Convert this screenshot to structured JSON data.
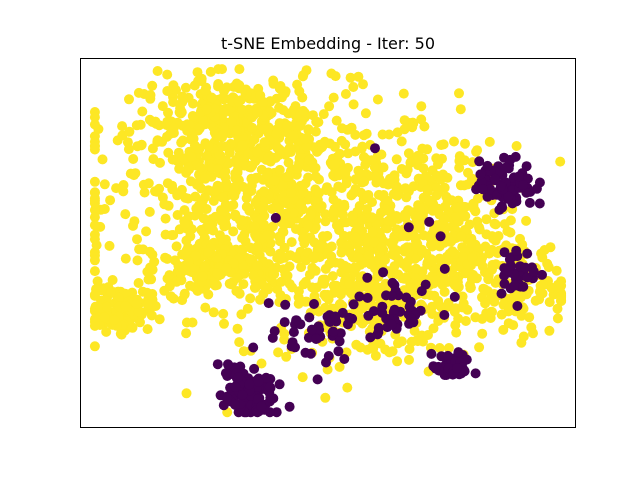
{
  "chart_data": {
    "type": "scatter",
    "title": "t-SNE Embedding -  Iter: 50",
    "xlabel": "",
    "ylabel": "",
    "xlim": [
      0,
      100
    ],
    "ylim": [
      0,
      100
    ],
    "grid": false,
    "ticks": "none",
    "colors": {
      "yellow": "#fde725",
      "purple": "#440154"
    },
    "clusters": [
      {
        "color": "yellow",
        "cx": 40,
        "cy": 60,
        "sx": 18,
        "sy": 15,
        "n": 900
      },
      {
        "color": "yellow",
        "cx": 30,
        "cy": 83,
        "sx": 9,
        "sy": 6,
        "n": 280
      },
      {
        "color": "yellow",
        "cx": 27,
        "cy": 43,
        "sx": 5,
        "sy": 5,
        "n": 170
      },
      {
        "color": "yellow",
        "cx": 8,
        "cy": 32,
        "sx": 3,
        "sy": 3,
        "n": 130
      },
      {
        "color": "yellow",
        "cx": 72,
        "cy": 52,
        "sx": 8,
        "sy": 12,
        "n": 320
      },
      {
        "color": "yellow",
        "cx": 60,
        "cy": 35,
        "sx": 10,
        "sy": 9,
        "n": 260
      },
      {
        "color": "yellow",
        "cx": 88,
        "cy": 38,
        "sx": 6,
        "sy": 6,
        "n": 110
      },
      {
        "color": "purple",
        "cx": 34,
        "cy": 9,
        "sx": 2.5,
        "sy": 3.5,
        "n": 120
      },
      {
        "color": "purple",
        "cx": 30,
        "cy": 16,
        "sx": 1.2,
        "sy": 1.5,
        "n": 10
      },
      {
        "color": "purple",
        "cx": 75,
        "cy": 16,
        "sx": 2,
        "sy": 1.8,
        "n": 45
      },
      {
        "color": "purple",
        "cx": 86,
        "cy": 66,
        "sx": 2.8,
        "sy": 3.2,
        "n": 90
      },
      {
        "color": "purple",
        "cx": 88,
        "cy": 42,
        "sx": 2,
        "sy": 3,
        "n": 40
      },
      {
        "color": "purple",
        "cx": 65,
        "cy": 32,
        "sx": 3,
        "sy": 3,
        "n": 28
      },
      {
        "color": "purple",
        "cx": 50,
        "cy": 28,
        "sx": 6,
        "sy": 4,
        "n": 35
      },
      {
        "color": "purple",
        "cx": 46,
        "cy": 22,
        "sx": 3,
        "sy": 3,
        "n": 15
      },
      {
        "color": "purple",
        "cx": 63,
        "cy": 46,
        "sx": 8,
        "sy": 12,
        "n": 18
      }
    ]
  }
}
